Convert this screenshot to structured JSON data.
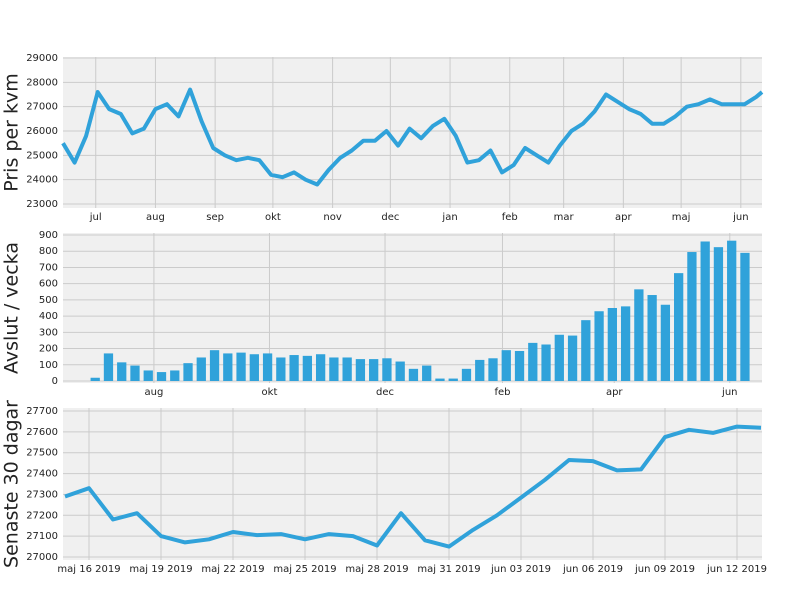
{
  "chart_data": [
    {
      "type": "line",
      "ylabel": "Pris per kvm",
      "color": "#30a2da",
      "x": [
        0,
        6,
        12,
        18,
        24,
        30,
        36,
        42,
        48,
        54,
        60,
        66,
        72,
        78,
        84,
        90,
        96,
        102,
        108,
        114,
        120,
        126,
        132,
        138,
        144,
        150,
        156,
        162,
        168,
        174,
        180,
        186,
        192,
        198,
        204,
        210,
        216,
        222,
        228,
        234,
        240,
        246,
        252,
        258,
        264,
        270,
        276,
        282,
        288,
        294,
        300,
        306,
        312,
        318,
        324,
        330,
        336,
        342,
        348,
        354,
        360,
        363
      ],
      "values": [
        25500,
        24700,
        25800,
        27600,
        26900,
        26700,
        25900,
        26100,
        26900,
        27100,
        26600,
        27700,
        26400,
        25300,
        25000,
        24800,
        24900,
        24800,
        24200,
        24100,
        24300,
        24000,
        23800,
        24400,
        24900,
        25200,
        25600,
        25600,
        26000,
        25400,
        26100,
        25700,
        26200,
        26500,
        25800,
        24700,
        24800,
        25200,
        24300,
        24600,
        25300,
        25000,
        24700,
        25400,
        26000,
        26300,
        26800,
        27500,
        27200,
        26900,
        26700,
        26300,
        26300,
        26600,
        27000,
        27100,
        27300,
        27100,
        27100,
        27100,
        27400,
        27600
      ],
      "xlim": [
        0,
        363
      ],
      "xticks": [
        {
          "value": 17,
          "label": "jul"
        },
        {
          "value": 48,
          "label": "aug"
        },
        {
          "value": 79,
          "label": "sep"
        },
        {
          "value": 109,
          "label": "okt"
        },
        {
          "value": 140,
          "label": "nov"
        },
        {
          "value": 170,
          "label": "dec"
        },
        {
          "value": 201,
          "label": "jan"
        },
        {
          "value": 232,
          "label": "feb"
        },
        {
          "value": 260,
          "label": "mar"
        },
        {
          "value": 291,
          "label": "apr"
        },
        {
          "value": 321,
          "label": "maj"
        },
        {
          "value": 352,
          "label": "jun"
        }
      ],
      "ylim": [
        23000,
        29000
      ],
      "yticks": [
        23000,
        24000,
        25000,
        26000,
        27000,
        28000,
        29000
      ],
      "grid": true
    },
    {
      "type": "bar",
      "ylabel": "Avslut / vecka",
      "color": "#30a2da",
      "x": [
        17,
        24,
        31,
        38,
        45,
        52,
        59,
        66,
        73,
        80,
        87,
        94,
        101,
        108,
        115,
        122,
        129,
        136,
        143,
        150,
        157,
        164,
        171,
        178,
        185,
        192,
        199,
        206,
        213,
        220,
        227,
        234,
        241,
        248,
        255,
        262,
        269,
        276,
        283,
        290,
        297,
        304,
        311,
        318,
        325,
        332,
        339,
        346,
        353,
        360
      ],
      "values": [
        20,
        170,
        115,
        95,
        65,
        55,
        65,
        110,
        145,
        190,
        170,
        175,
        165,
        170,
        145,
        160,
        155,
        165,
        145,
        145,
        135,
        135,
        140,
        120,
        75,
        95,
        15,
        15,
        75,
        130,
        140,
        190,
        185,
        235,
        225,
        285,
        280,
        375,
        430,
        450,
        460,
        565,
        530,
        470,
        665,
        795,
        860,
        825,
        865,
        790
      ],
      "xlim": [
        0,
        369
      ],
      "xticks": [
        {
          "value": 48,
          "label": "aug"
        },
        {
          "value": 109,
          "label": "okt"
        },
        {
          "value": 170,
          "label": "dec"
        },
        {
          "value": 232,
          "label": "feb"
        },
        {
          "value": 291,
          "label": "apr"
        },
        {
          "value": 352,
          "label": "jun"
        }
      ],
      "ylim": [
        0,
        900
      ],
      "yticks": [
        0,
        100,
        200,
        300,
        400,
        500,
        600,
        700,
        800,
        900
      ],
      "grid": true
    },
    {
      "type": "line",
      "ylabel": "Senaste 30 dagar",
      "color": "#30a2da",
      "x": [
        "2019-05-15",
        "2019-05-16",
        "2019-05-17",
        "2019-05-18",
        "2019-05-19",
        "2019-05-20",
        "2019-05-21",
        "2019-05-22",
        "2019-05-23",
        "2019-05-24",
        "2019-05-25",
        "2019-05-26",
        "2019-05-27",
        "2019-05-28",
        "2019-05-29",
        "2019-05-30",
        "2019-05-31",
        "2019-06-01",
        "2019-06-02",
        "2019-06-03",
        "2019-06-04",
        "2019-06-05",
        "2019-06-06",
        "2019-06-07",
        "2019-06-08",
        "2019-06-09",
        "2019-06-10",
        "2019-06-11",
        "2019-06-12",
        "2019-06-13"
      ],
      "values": [
        27290,
        27330,
        27180,
        27210,
        27100,
        27070,
        27085,
        27120,
        27105,
        27110,
        27085,
        27110,
        27100,
        27055,
        27210,
        27080,
        27050,
        27130,
        27200,
        27285,
        27370,
        27465,
        27460,
        27415,
        27420,
        27575,
        27610,
        27595,
        27625,
        27620
      ],
      "xlim": [
        "2019-05-15",
        "2019-06-13"
      ],
      "xticks": [
        {
          "value": "2019-05-16",
          "label": "maj 16 2019"
        },
        {
          "value": "2019-05-19",
          "label": "maj 19 2019"
        },
        {
          "value": "2019-05-22",
          "label": "maj 22 2019"
        },
        {
          "value": "2019-05-25",
          "label": "maj 25 2019"
        },
        {
          "value": "2019-05-28",
          "label": "maj 28 2019"
        },
        {
          "value": "2019-05-31",
          "label": "maj 31 2019"
        },
        {
          "value": "2019-06-03",
          "label": "jun 03 2019"
        },
        {
          "value": "2019-06-06",
          "label": "jun 06 2019"
        },
        {
          "value": "2019-06-09",
          "label": "jun 09 2019"
        },
        {
          "value": "2019-06-12",
          "label": "jun 12 2019"
        }
      ],
      "ylim": [
        27000,
        27700
      ],
      "yticks": [
        27000,
        27100,
        27200,
        27300,
        27400,
        27500,
        27600,
        27700
      ],
      "grid": true
    }
  ]
}
